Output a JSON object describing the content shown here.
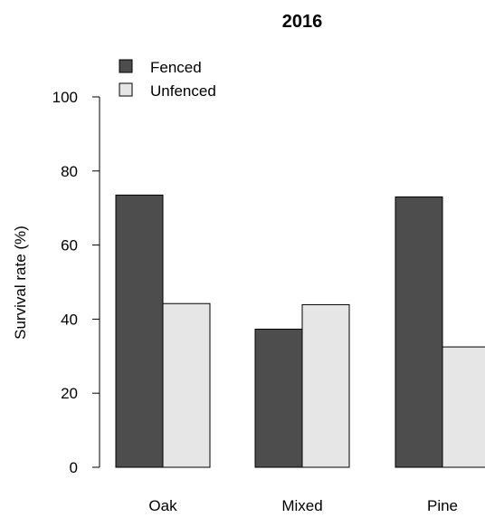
{
  "chart_data": {
    "type": "bar",
    "title": "2016",
    "ylabel": "Survival rate (%)",
    "xlabel": "",
    "categories": [
      "Oak",
      "Mixed",
      "Pine"
    ],
    "series": [
      {
        "name": "Fenced",
        "color": "#4d4d4d",
        "values": [
          73.5,
          37.3,
          73.0
        ]
      },
      {
        "name": "Unfenced",
        "color": "#e6e6e6",
        "values": [
          44.2,
          43.9,
          32.5
        ]
      }
    ],
    "ylim": [
      0,
      100
    ],
    "yticks": [
      "0",
      "20",
      "40",
      "60",
      "80",
      "100"
    ],
    "grid": false,
    "legend_position": "top-left"
  }
}
